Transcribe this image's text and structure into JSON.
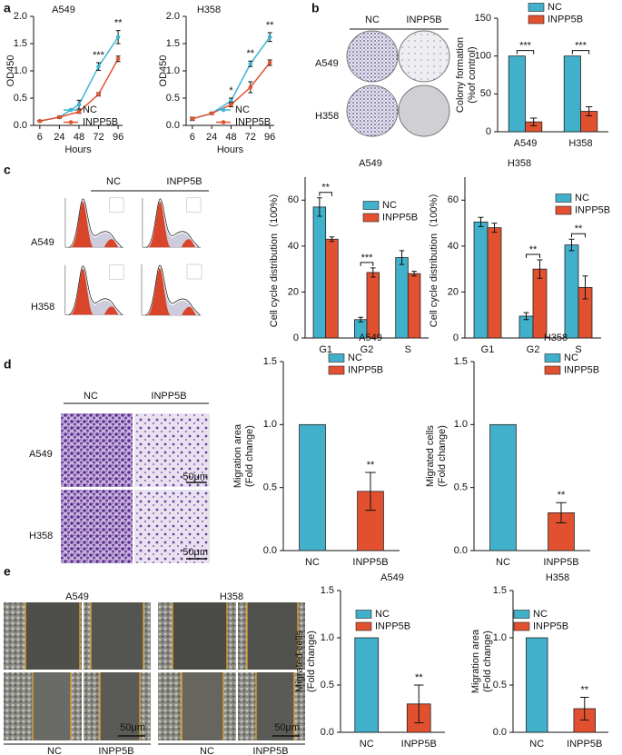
{
  "figure": {
    "panel_letters": [
      "a",
      "b",
      "c",
      "d",
      "e"
    ],
    "b": {
      "columns": [
        "NC",
        "INPP5B"
      ],
      "rows": [
        "A549",
        "H358"
      ]
    },
    "c": {
      "columns": [
        "NC",
        "INPP5B"
      ],
      "rows": [
        "A549",
        "H358"
      ]
    },
    "d": {
      "columns": [
        "NC",
        "INPP5B"
      ],
      "rows": [
        "A549",
        "H358"
      ],
      "scale_bars": [
        "50μm",
        "50μm"
      ]
    },
    "e": {
      "columns": [
        "A549",
        "H358"
      ],
      "groups": [
        "NC",
        "INPP5B",
        "NC",
        "INPP5B"
      ],
      "scale_bars": [
        "50μm",
        "50μm"
      ]
    }
  },
  "chart_data": [
    {
      "type": "line",
      "title": "A549",
      "x_label": "Hours",
      "y_label": "OD450",
      "categories": [
        "6",
        "24",
        "48",
        "72",
        "96"
      ],
      "series": [
        {
          "name": "NC",
          "color": "#3db5d3",
          "values": [
            0.08,
            0.15,
            0.38,
            1.08,
            1.62
          ],
          "errors": [
            0.01,
            0.02,
            0.08,
            0.07,
            0.12
          ]
        },
        {
          "name": "INPP5B",
          "color": "#e4522f",
          "values": [
            0.08,
            0.15,
            0.25,
            0.57,
            1.22
          ],
          "errors": [
            0.01,
            0.01,
            0.03,
            0.03,
            0.05
          ]
        }
      ],
      "ylim": [
        0,
        2.0
      ],
      "yticks": [
        {
          "value": 0,
          "label": "0.0"
        },
        {
          "value": 0.5,
          "label": "0.5"
        },
        {
          "value": 1.0,
          "label": "1.0"
        },
        {
          "value": 1.5,
          "label": "1.5"
        },
        {
          "value": 2.0,
          "label": "2.0"
        }
      ],
      "annotations": [
        {
          "text": "***",
          "category": "72"
        },
        {
          "text": "**",
          "category": "96"
        }
      ],
      "legend": "lower right"
    },
    {
      "type": "line",
      "title": "H358",
      "x_label": "Hours",
      "y_label": "OD450",
      "categories": [
        "6",
        "24",
        "48",
        "72",
        "96"
      ],
      "series": [
        {
          "name": "NC",
          "color": "#3db5d3",
          "values": [
            0.12,
            0.22,
            0.45,
            1.13,
            1.62
          ],
          "errors": [
            0.03,
            0.02,
            0.05,
            0.05,
            0.08
          ]
        },
        {
          "name": "INPP5B",
          "color": "#e4522f",
          "values": [
            0.12,
            0.22,
            0.38,
            0.7,
            1.15
          ],
          "errors": [
            0.02,
            0.02,
            0.04,
            0.1,
            0.05
          ]
        }
      ],
      "ylim": [
        0,
        2.0
      ],
      "yticks": [
        {
          "value": 0,
          "label": "0.0"
        },
        {
          "value": 0.5,
          "label": "0.5"
        },
        {
          "value": 1.0,
          "label": "1.0"
        },
        {
          "value": 1.5,
          "label": "1.5"
        },
        {
          "value": 2.0,
          "label": "2.0"
        }
      ],
      "annotations": [
        {
          "text": "*",
          "category": "48"
        },
        {
          "text": "**",
          "category": "72"
        },
        {
          "text": "**",
          "category": "96"
        }
      ],
      "legend": "lower right"
    },
    {
      "type": "bar",
      "y_label": [
        "Colony formation",
        "(%of control)"
      ],
      "categories": [
        "A549",
        "H358"
      ],
      "series": [
        {
          "name": "NC",
          "color": "#41b0cb",
          "values": [
            100,
            100
          ]
        },
        {
          "name": "INPP5B",
          "color": "#e2512f",
          "values": [
            13,
            27
          ],
          "errors": [
            5,
            6
          ]
        }
      ],
      "ylim": [
        0,
        150
      ],
      "yticks": [
        0,
        50,
        100,
        150
      ],
      "annotations": [
        {
          "text": "***",
          "category": "A549"
        },
        {
          "text": "***",
          "category": "H358"
        }
      ],
      "legend": "upper right"
    },
    {
      "type": "bar",
      "title": "A549",
      "y_label": "Cell cycle distribution（100%）",
      "categories": [
        "G1",
        "G2",
        "S"
      ],
      "series": [
        {
          "name": "NC",
          "color": "#41b0cb",
          "values": [
            57,
            8,
            35
          ],
          "errors": [
            4,
            1,
            3
          ]
        },
        {
          "name": "INPP5B",
          "color": "#e2512f",
          "values": [
            43,
            28.5,
            28
          ],
          "errors": [
            1,
            2,
            1
          ]
        }
      ],
      "ylim": [
        0,
        70
      ],
      "yticks": [
        0,
        20,
        40,
        60
      ],
      "annotations": [
        {
          "text": "**",
          "category": "G1"
        },
        {
          "text": "***",
          "category": "G2"
        }
      ],
      "legend": "upper right"
    },
    {
      "type": "bar",
      "title": "H358",
      "y_label": "Cell cycle distribution（100%）",
      "categories": [
        "G1",
        "G2",
        "S"
      ],
      "series": [
        {
          "name": "NC",
          "color": "#41b0cb",
          "values": [
            50.5,
            9.5,
            40.5
          ],
          "errors": [
            2,
            1.5,
            2.5
          ]
        },
        {
          "name": "INPP5B",
          "color": "#e2512f",
          "values": [
            48,
            30,
            22
          ],
          "errors": [
            2,
            4,
            5
          ]
        }
      ],
      "ylim": [
        0,
        70
      ],
      "yticks": [
        0,
        20,
        40,
        60
      ],
      "annotations": [
        {
          "text": "**",
          "category": "G2"
        },
        {
          "text": "**",
          "category": "S"
        }
      ],
      "legend": "upper right"
    },
    {
      "type": "bar",
      "title": "A549",
      "y_label": [
        "Migration area",
        "(Fold change)"
      ],
      "categories": [
        "NC",
        "INPP5B"
      ],
      "series": [
        {
          "name": "NC",
          "color": "#41b0cb",
          "values": [
            1.0,
            null
          ]
        },
        {
          "name": "INPP5B",
          "color": "#e2512f",
          "values": [
            null,
            0.47
          ],
          "errors": [
            null,
            0.15
          ]
        }
      ],
      "ylim": [
        0,
        1.5
      ],
      "yticks": [
        {
          "value": 0,
          "label": "0.0"
        },
        {
          "value": 0.5,
          "label": "0.5"
        },
        {
          "value": 1.0,
          "label": "1.0"
        },
        {
          "value": 1.5,
          "label": "1.5"
        }
      ],
      "annotations": [
        {
          "text": "**",
          "category": "INPP5B"
        }
      ],
      "legend": "upper right"
    },
    {
      "type": "bar",
      "title": "H358",
      "y_label": [
        "Migrated cells",
        "(Fold change)"
      ],
      "categories": [
        "NC",
        "INPP5B"
      ],
      "series": [
        {
          "name": "NC",
          "color": "#41b0cb",
          "values": [
            1.0,
            null
          ]
        },
        {
          "name": "INPP5B",
          "color": "#e2512f",
          "values": [
            null,
            0.3
          ],
          "errors": [
            null,
            0.08
          ]
        }
      ],
      "ylim": [
        0,
        1.5
      ],
      "yticks": [
        {
          "value": 0,
          "label": "0.0"
        },
        {
          "value": 0.5,
          "label": "0.5"
        },
        {
          "value": 1.0,
          "label": "1.0"
        },
        {
          "value": 1.5,
          "label": "1.5"
        }
      ],
      "annotations": [
        {
          "text": "**",
          "category": "INPP5B"
        }
      ],
      "legend": "upper right"
    },
    {
      "type": "bar",
      "title": "A549",
      "y_label": [
        "Migrated cells",
        "(Fold change)"
      ],
      "categories": [
        "NC",
        "INPP5B"
      ],
      "series": [
        {
          "name": "NC",
          "color": "#41b0cb",
          "values": [
            1.0,
            null
          ]
        },
        {
          "name": "INPP5B",
          "color": "#e2512f",
          "values": [
            null,
            0.3
          ],
          "errors": [
            null,
            0.2
          ]
        }
      ],
      "ylim": [
        0,
        1.5
      ],
      "yticks": [
        {
          "value": 0,
          "label": "0.0"
        },
        {
          "value": 0.5,
          "label": "0.5"
        },
        {
          "value": 1.0,
          "label": "1.0"
        },
        {
          "value": 1.5,
          "label": "1.5"
        }
      ],
      "annotations": [
        {
          "text": "**",
          "category": "INPP5B"
        }
      ],
      "legend": "upper left"
    },
    {
      "type": "bar",
      "title": "H358",
      "y_label": [
        "Migration area",
        "(Fold change)"
      ],
      "categories": [
        "NC",
        "INPP5B"
      ],
      "series": [
        {
          "name": "NC",
          "color": "#41b0cb",
          "values": [
            1.0,
            null
          ]
        },
        {
          "name": "INPP5B",
          "color": "#e2512f",
          "values": [
            null,
            0.25
          ],
          "errors": [
            null,
            0.12
          ]
        }
      ],
      "ylim": [
        0,
        1.5
      ],
      "yticks": [
        {
          "value": 0,
          "label": "0.0"
        },
        {
          "value": 0.5,
          "label": "0.5"
        },
        {
          "value": 1.0,
          "label": "1.0"
        },
        {
          "value": 1.5,
          "label": "1.5"
        }
      ],
      "annotations": [
        {
          "text": "**",
          "category": "INPP5B"
        }
      ],
      "legend": "upper left"
    }
  ]
}
